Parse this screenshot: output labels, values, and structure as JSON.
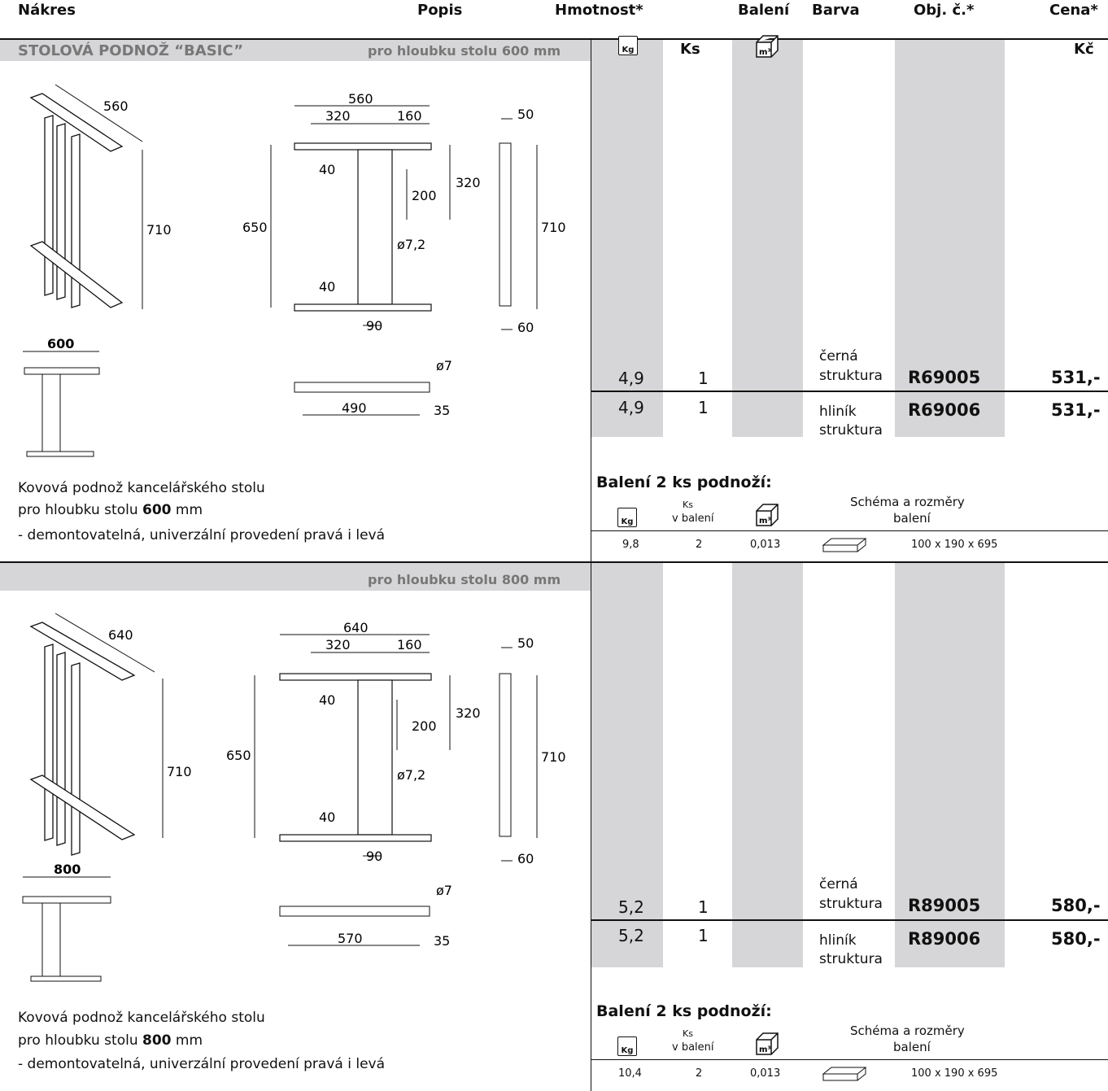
{
  "headers": {
    "nakres": "Nákres",
    "popis": "Popis",
    "hmotnost": "Hmotnost*",
    "baleni": "Balení",
    "barva": "Barva",
    "obj": "Obj. č.*",
    "cena": "Cena*"
  },
  "section1": {
    "title": "STOLOVÁ PODNOŽ “BASIC”",
    "subtitle": "pro hloubku stolu 600 mm",
    "ks_label": "Ks",
    "currency": "Kč",
    "icon_kg": "Kg",
    "icon_m3": "m³",
    "rows": [
      {
        "weight": "4,9",
        "ks": "1",
        "color1": "černá",
        "color2": "struktura",
        "code": "R69005",
        "price": "531,-"
      },
      {
        "weight": "4,9",
        "ks": "1",
        "color1": "hliník",
        "color2": "struktura",
        "code": "R69006",
        "price": "531,-"
      }
    ],
    "desc1": "Kovová podnož kancelářského stolu",
    "desc2_pre": "pro hloubku stolu ",
    "desc2_bold": "600",
    "desc2_post": " mm",
    "desc3": "- demontovatelná, univerzální provedení pravá i levá",
    "pack_title": "Balení 2 ks podnoží:",
    "pack_ks1": "Ks",
    "pack_ks2": "v balení",
    "pack_schema1": "Schéma a rozměry",
    "pack_schema2": "balení",
    "pack_weight": "9,8",
    "pack_ks": "2",
    "pack_volume": "0,013",
    "pack_dims": "100 x 190 x 695",
    "dims": {
      "top_width": "560",
      "a": "320",
      "b": "160",
      "h650": "650",
      "h320": "320",
      "h200": "200",
      "h40a": "40",
      "h40b": "40",
      "hole": "ø7,2",
      "w90": "90",
      "side50": "50",
      "side710": "710",
      "side60": "60",
      "iso560": "560",
      "iso710": "710",
      "front": "600",
      "bar_hole": "ø7",
      "bar490": "490",
      "bar35": "35"
    }
  },
  "section2": {
    "subtitle": "pro hloubku stolu 800 mm",
    "rows": [
      {
        "weight": "5,2",
        "ks": "1",
        "color1": "černá",
        "color2": "struktura",
        "code": "R89005",
        "price": "580,-"
      },
      {
        "weight": "5,2",
        "ks": "1",
        "color1": "hliník",
        "color2": "struktura",
        "code": "R89006",
        "price": "580,-"
      }
    ],
    "desc1": "Kovová podnož kancelářského stolu",
    "desc2_pre": "pro hloubku stolu ",
    "desc2_bold": "800",
    "desc2_post": " mm",
    "desc3": "- demontovatelná, univerzální provedení pravá i levá",
    "pack_title": "Balení 2 ks podnoží:",
    "pack_ks1": "Ks",
    "pack_ks2": "v balení",
    "pack_schema1": "Schéma a rozměry",
    "pack_schema2": "balení",
    "pack_weight": "10,4",
    "pack_ks": "2",
    "pack_volume": "0,013",
    "pack_dims": "100 x 190 x 695",
    "dims": {
      "top_width": "640",
      "a": "320",
      "b": "160",
      "h650": "650",
      "h320": "320",
      "h200": "200",
      "h40a": "40",
      "h40b": "40",
      "hole": "ø7,2",
      "w90": "90",
      "side50": "50",
      "side710": "710",
      "side60": "60",
      "iso560": "640",
      "iso710": "710",
      "front": "800",
      "bar_hole": "ø7",
      "bar490": "570",
      "bar35": "35"
    }
  }
}
